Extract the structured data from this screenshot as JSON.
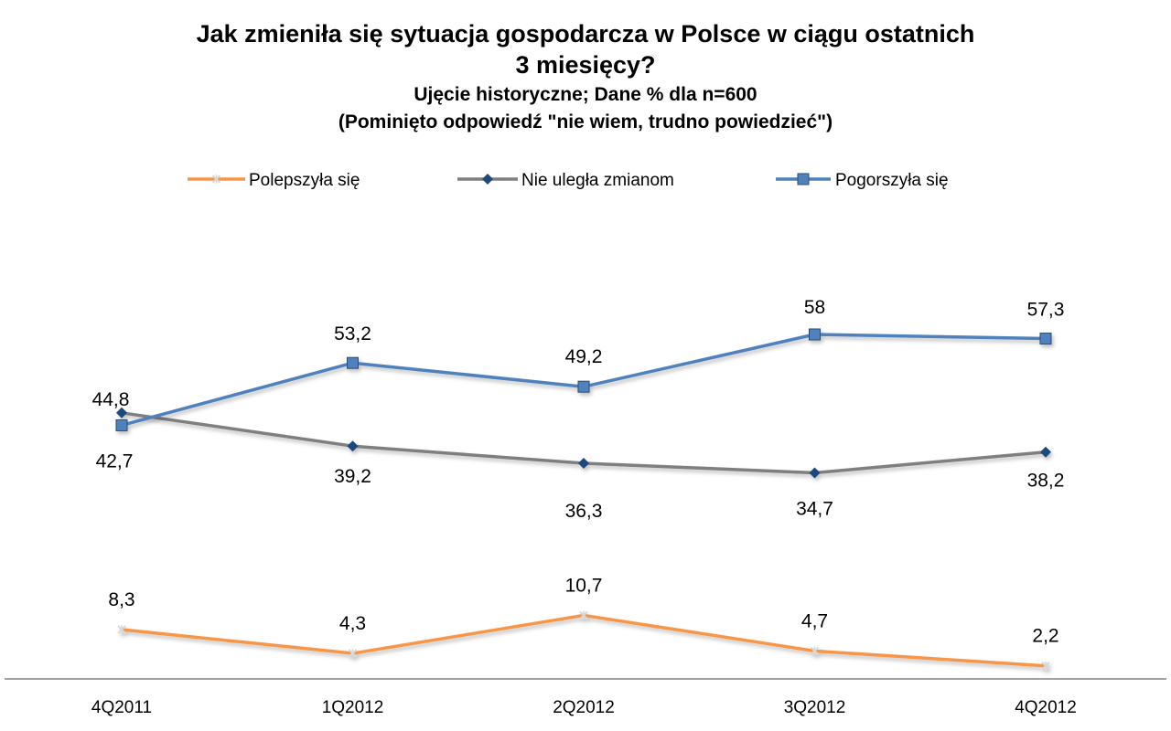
{
  "chart_data": {
    "type": "line",
    "title": "Jak zmieniła się sytuacja gospodarcza  w Polsce w ciągu ostatnich",
    "title_line2": "3 miesięcy?",
    "subtitle": "Ujęcie historyczne; Dane % dla n=600",
    "subtitle_line2": "(Pominięto odpowiedź  \"nie wiem, trudno powiedzieć\")",
    "categories": [
      "4Q2011",
      "1Q2012",
      "2Q2012",
      "3Q2012",
      "4Q2012"
    ],
    "series": [
      {
        "name": "Polepszyła się",
        "values": [
          8.3,
          4.3,
          10.7,
          4.7,
          2.2
        ],
        "labels": [
          "8,3",
          "4,3",
          "10,7",
          "4,7",
          "2,2"
        ],
        "color": "#f79646",
        "marker": "star"
      },
      {
        "name": "Nie uległa zmianom",
        "values": [
          44.8,
          39.2,
          36.3,
          34.7,
          38.2
        ],
        "labels": [
          "44,8",
          "39,2",
          "36,3",
          "34,7",
          "38,2"
        ],
        "color": "#7f7f7f",
        "marker": "diamond",
        "marker_color": "#1f497d"
      },
      {
        "name": "Pogorszyła się",
        "values": [
          42.7,
          53.2,
          49.2,
          58,
          57.3
        ],
        "labels": [
          "42,7",
          "53,2",
          "49,2",
          "58",
          "57,3"
        ],
        "color": "#4f81bd",
        "marker": "square"
      }
    ],
    "xlabel": "",
    "ylabel": "",
    "ylim": [
      0,
      70
    ],
    "grid": false,
    "legend": "top-center"
  }
}
